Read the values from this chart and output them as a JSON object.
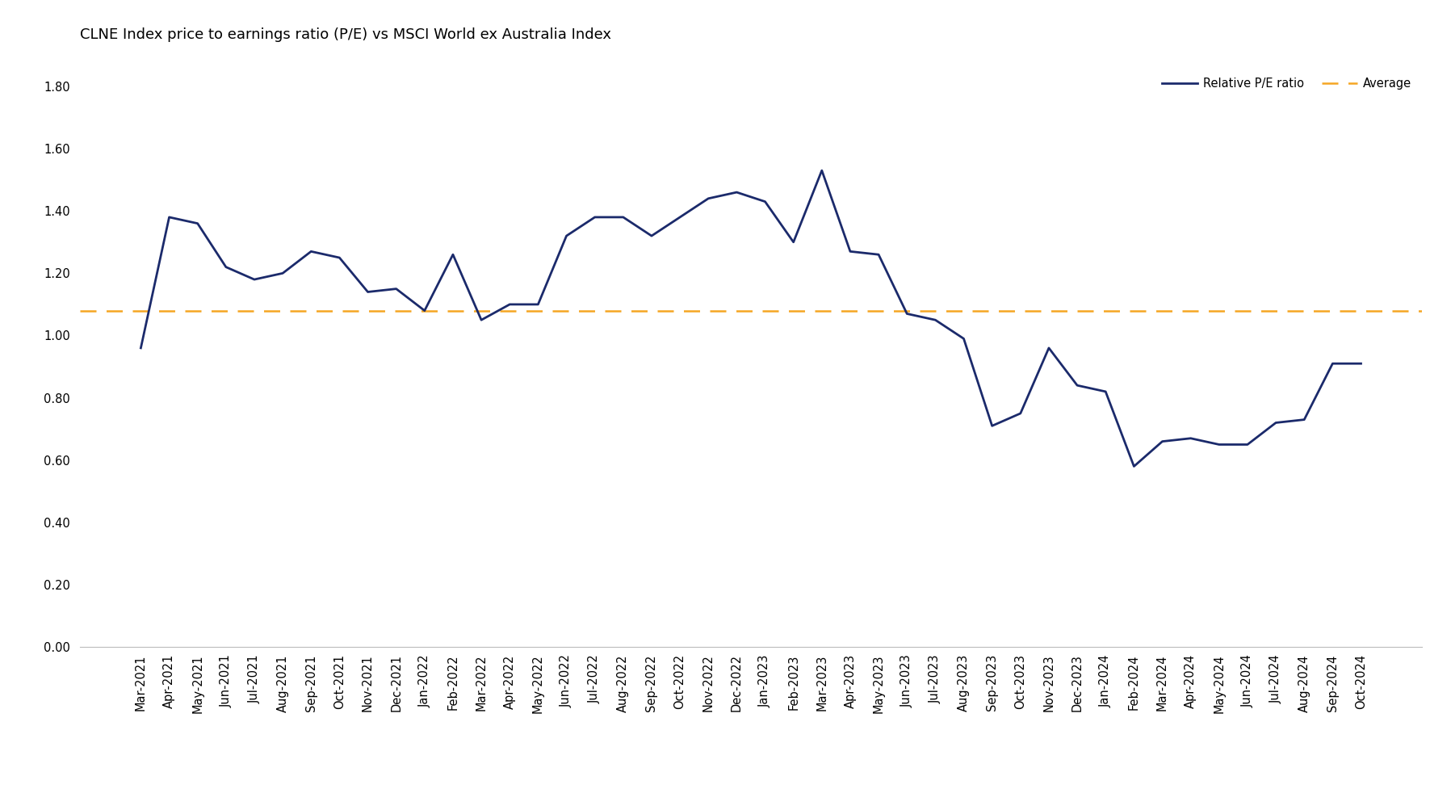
{
  "title": "CLNE Index price to earnings ratio (P/E) vs MSCI World ex Australia Index",
  "labels": [
    "Mar-2021",
    "Apr-2021",
    "May-2021",
    "Jun-2021",
    "Jul-2021",
    "Aug-2021",
    "Sep-2021",
    "Oct-2021",
    "Nov-2021",
    "Dec-2021",
    "Jan-2022",
    "Feb-2022",
    "Mar-2022",
    "Apr-2022",
    "May-2022",
    "Jun-2022",
    "Jul-2022",
    "Aug-2022",
    "Sep-2022",
    "Oct-2022",
    "Nov-2022",
    "Dec-2022",
    "Jan-2023",
    "Feb-2023",
    "Mar-2023",
    "Apr-2023",
    "May-2023",
    "Jun-2023",
    "Jul-2023",
    "Aug-2023",
    "Sep-2023",
    "Oct-2023",
    "Nov-2023",
    "Dec-2023",
    "Jan-2024",
    "Feb-2024",
    "Mar-2024",
    "Apr-2024",
    "May-2024",
    "Jun-2024",
    "Jul-2024",
    "Aug-2024",
    "Sep-2024",
    "Oct-2024"
  ],
  "values": [
    0.96,
    1.38,
    1.36,
    1.22,
    1.18,
    1.2,
    1.27,
    1.25,
    1.14,
    1.15,
    1.08,
    1.26,
    1.05,
    1.1,
    1.1,
    1.32,
    1.38,
    1.38,
    1.32,
    1.38,
    1.44,
    1.46,
    1.43,
    1.3,
    1.53,
    1.27,
    1.26,
    1.07,
    1.05,
    0.99,
    0.71,
    0.75,
    0.96,
    0.84,
    0.82,
    0.58,
    0.66,
    0.67,
    0.65,
    0.65,
    0.72,
    0.73,
    0.91,
    0.91
  ],
  "average": 1.08,
  "line_color": "#1B2A6B",
  "average_color": "#F5A623",
  "line_width": 2.0,
  "average_linewidth": 1.8,
  "ylim": [
    0.0,
    1.9
  ],
  "yticks": [
    0.0,
    0.2,
    0.4,
    0.6,
    0.8,
    1.0,
    1.2,
    1.4,
    1.6,
    1.8
  ],
  "legend_labels": [
    "Relative P/E ratio",
    "Average"
  ],
  "title_fontsize": 13,
  "tick_fontsize": 10.5,
  "legend_fontsize": 10.5
}
